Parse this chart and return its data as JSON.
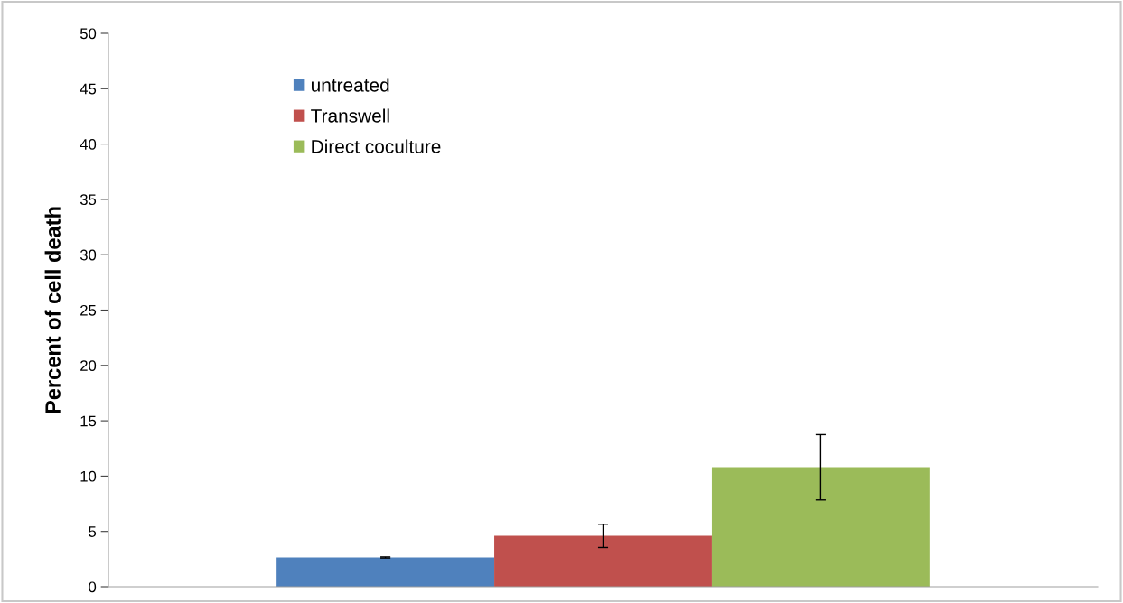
{
  "chart_data": {
    "type": "bar",
    "ylabel": "Percent of cell death",
    "categories": [
      null
    ],
    "series": [
      {
        "name": "untreated",
        "color": "#4f81bd",
        "values": [
          2.65
        ],
        "errors": [
          0.05
        ]
      },
      {
        "name": "Transwell",
        "color": "#c0504d",
        "values": [
          4.6
        ],
        "errors": [
          1.05
        ]
      },
      {
        "name": "Direct coculture",
        "color": "#9bbb59",
        "values": [
          10.8
        ],
        "errors": [
          2.95
        ]
      }
    ],
    "ylim": [
      0,
      50
    ],
    "yticks": [
      0,
      5,
      10,
      15,
      20,
      25,
      30,
      35,
      40,
      45,
      50
    ],
    "grid": false,
    "legend": "top left"
  }
}
